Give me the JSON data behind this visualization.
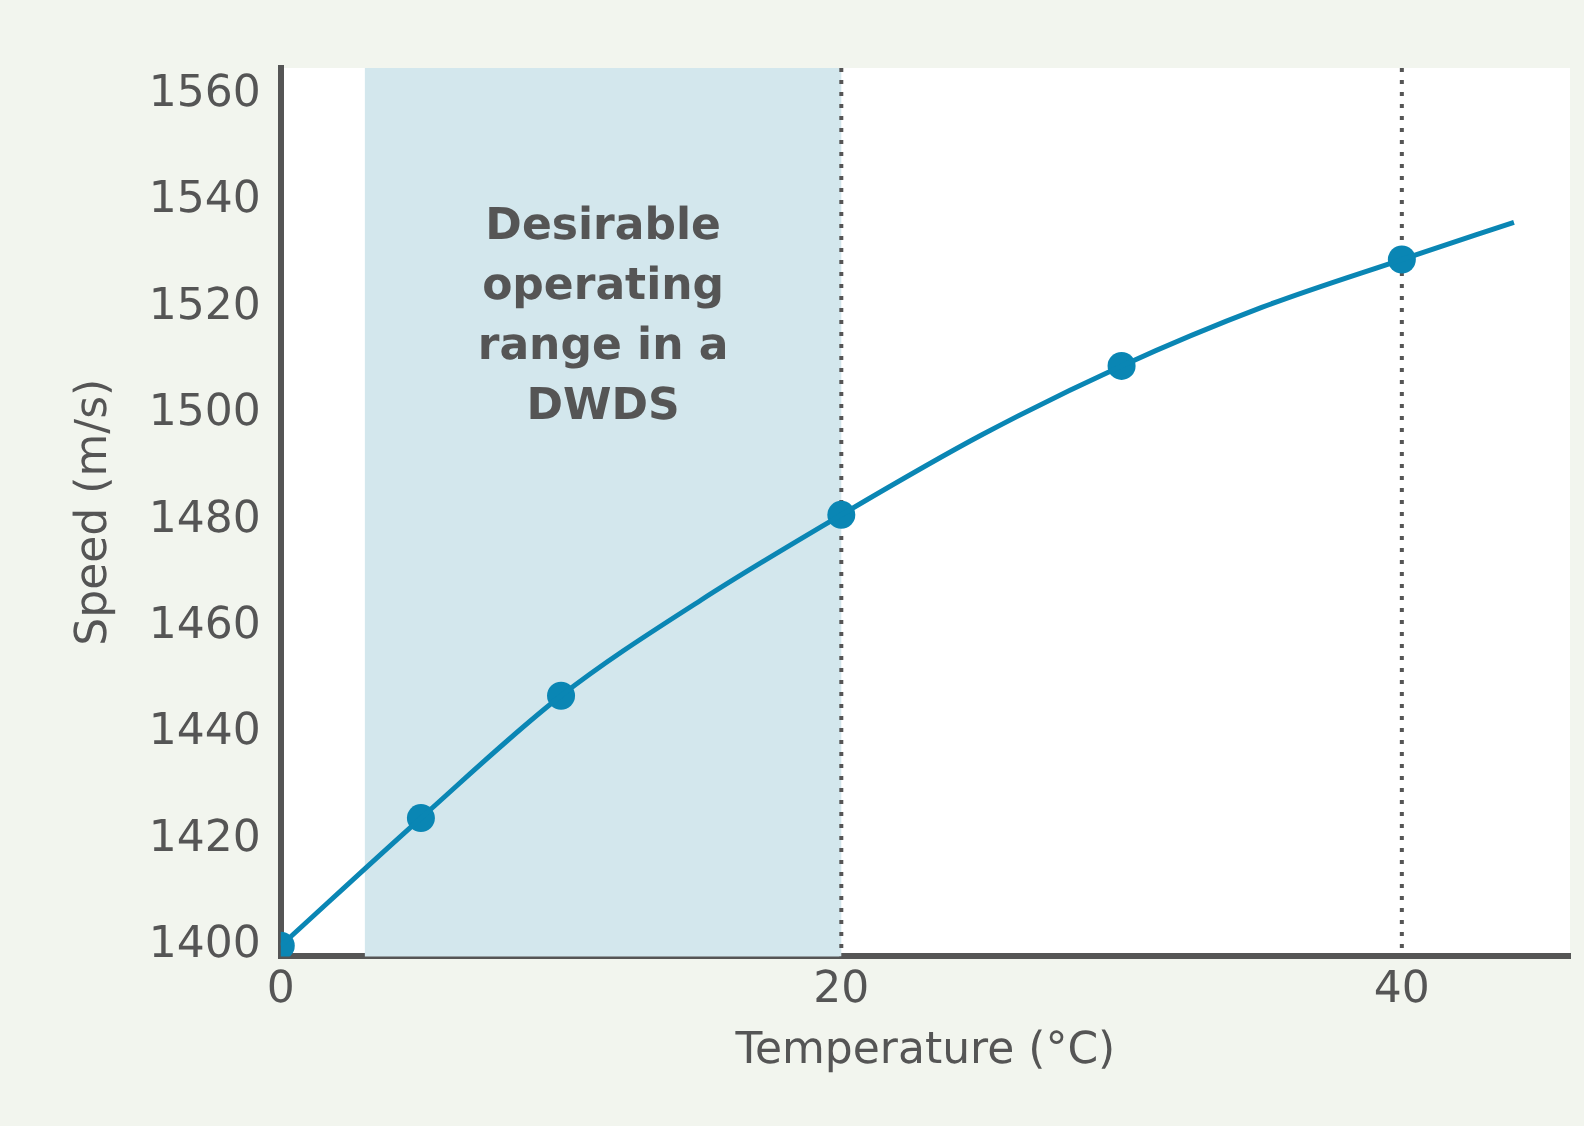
{
  "chart_data": {
    "type": "line",
    "xlabel": "Temperature (°C)",
    "ylabel": "Speed (m/s)",
    "xlim": [
      0,
      46
    ],
    "xticks": [
      0,
      20,
      40
    ],
    "ylim": [
      1398,
      1565
    ],
    "yticks": [
      1400,
      1420,
      1440,
      1460,
      1480,
      1500,
      1520,
      1540,
      1560
    ],
    "series": [
      {
        "marker": "none",
        "color": "#0a86b4",
        "x": [
          0,
          5,
          10,
          15,
          20,
          25,
          30,
          35,
          40,
          44
        ],
        "values": [
          1400,
          1424,
          1447,
          1465,
          1481,
          1496,
          1509,
          1520,
          1529,
          1536
        ]
      },
      {
        "type": "scatter",
        "marker": "circle",
        "color": "#0a86b4",
        "x": [
          0,
          5,
          10,
          20,
          30,
          40
        ],
        "values": [
          1400,
          1424,
          1447,
          1481,
          1509,
          1529
        ]
      }
    ],
    "bands": [
      {
        "axis": "x",
        "from": 3,
        "to": 20,
        "label": "Desirable operating range in a DWDS",
        "color": "#d3e7ed"
      }
    ],
    "ref_lines": [
      {
        "axis": "x",
        "value": 20,
        "color": "#555555",
        "line_style": "dotted"
      },
      {
        "axis": "x",
        "value": 40,
        "color": "#555555",
        "line_style": "dotted"
      }
    ],
    "grid": false,
    "legend": false
  }
}
